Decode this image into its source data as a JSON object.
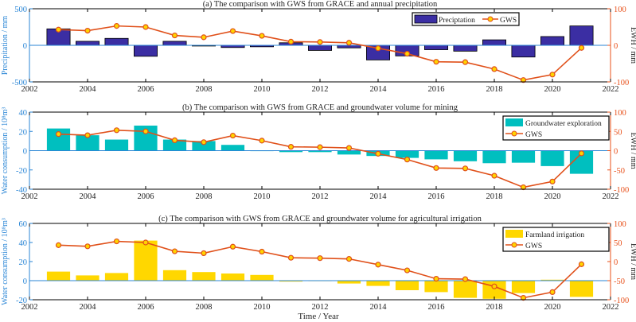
{
  "xlabel": "Time / Year",
  "colors": {
    "left_axis": "#2a86d6",
    "right_axis": "#e8501a",
    "gws_line": "#e0501a",
    "gws_marker_fill": "#ffd400"
  },
  "chart_data": [
    {
      "type": "bar",
      "title": "(a) The comparison with GWS from GRACE and annual precipitation",
      "ylabel": "Precipitation / mm",
      "y2label": "EWH / mm",
      "xlim": [
        2002,
        2022
      ],
      "xticks": [
        "2002",
        "2004",
        "2006",
        "2008",
        "2010",
        "2012",
        "2014",
        "2016",
        "2018",
        "2020",
        "2022"
      ],
      "ylim": [
        -500,
        500
      ],
      "yticks": [
        "-500",
        "0",
        "500"
      ],
      "y2lim": [
        -100,
        100
      ],
      "y2ticks": [
        "-100",
        "0",
        "100"
      ],
      "legend_position": "top-right-inline",
      "bar_color": "#3b2ea3",
      "bar_edge": "#000000",
      "series": [
        {
          "name": "Preciptation",
          "axis": "left",
          "kind": "bar",
          "x": [
            2003,
            2004,
            2005,
            2006,
            2007,
            2008,
            2009,
            2010,
            2011,
            2012,
            2013,
            2014,
            2015,
            2016,
            2017,
            2018,
            2019,
            2020,
            2021
          ],
          "values": [
            225,
            55,
            95,
            -150,
            55,
            -10,
            -30,
            -20,
            35,
            -70,
            -35,
            -200,
            -145,
            -60,
            -80,
            75,
            -160,
            120,
            265
          ]
        },
        {
          "name": "GWS",
          "axis": "right",
          "kind": "line",
          "x": [
            2003,
            2004,
            2005,
            2006,
            2007,
            2008,
            2009,
            2010,
            2011,
            2012,
            2013,
            2014,
            2015,
            2016,
            2017,
            2018,
            2019,
            2020,
            2021
          ],
          "values": [
            43,
            40,
            53,
            50,
            27,
            22,
            39,
            26,
            10,
            9,
            7,
            -8,
            -23,
            -45,
            -46,
            -65,
            -95,
            -80,
            -7
          ]
        }
      ]
    },
    {
      "type": "bar",
      "title": "(b) The comparison with GWS from GRACE and groundwater volume for mining",
      "ylabel": "Water consumption / 10⁸m³",
      "y2label": "EWH / mm",
      "xlim": [
        2002,
        2022
      ],
      "xticks": [
        "2002",
        "2004",
        "2006",
        "2008",
        "2010",
        "2012",
        "2014",
        "2016",
        "2018",
        "2020",
        "2022"
      ],
      "ylim": [
        -40,
        40
      ],
      "yticks": [
        "-40",
        "-20",
        "0",
        "20",
        "40"
      ],
      "y2lim": [
        -100,
        100
      ],
      "y2ticks": [
        "-100",
        "-50",
        "0",
        "50",
        "100"
      ],
      "legend_position": "top-right-stacked",
      "bar_color": "#00bfbf",
      "bar_edge": "none",
      "series": [
        {
          "name": "Groundwater exploration",
          "axis": "left",
          "kind": "bar",
          "x": [
            2003,
            2004,
            2005,
            2006,
            2007,
            2008,
            2009,
            2010,
            2011,
            2012,
            2013,
            2014,
            2015,
            2016,
            2017,
            2018,
            2019,
            2020,
            2021
          ],
          "values": [
            23,
            16,
            11.5,
            26,
            11.5,
            10,
            6,
            0,
            -1.5,
            -1.5,
            -4,
            -5.5,
            -7.5,
            -9,
            -11,
            -13,
            -12.5,
            -16,
            -24
          ]
        },
        {
          "name": "GWS",
          "axis": "right",
          "kind": "line",
          "x": [
            2003,
            2004,
            2005,
            2006,
            2007,
            2008,
            2009,
            2010,
            2011,
            2012,
            2013,
            2014,
            2015,
            2016,
            2017,
            2018,
            2019,
            2020,
            2021
          ],
          "values": [
            43,
            40,
            53,
            50,
            27,
            22,
            39,
            26,
            10,
            9,
            7,
            -8,
            -23,
            -45,
            -46,
            -65,
            -95,
            -80,
            -7
          ]
        }
      ]
    },
    {
      "type": "bar",
      "title": "(c) The comparison with GWS from GRACE and groundwater volume for agricultural irrigation",
      "ylabel": "Water consumption / 10⁸m³",
      "y2label": "EWH / mm",
      "xlim": [
        2002,
        2022
      ],
      "xticks": [
        "2002",
        "2004",
        "2006",
        "2008",
        "2010",
        "2012",
        "2014",
        "2016",
        "2018",
        "2020",
        "2022"
      ],
      "ylim": [
        -20,
        60
      ],
      "yticks": [
        "-20",
        "0",
        "20",
        "40",
        "60"
      ],
      "y2lim": [
        -100,
        100
      ],
      "y2ticks": [
        "-100",
        "-50",
        "0",
        "50",
        "100"
      ],
      "legend_position": "top-right-stacked",
      "bar_color": "#ffd700",
      "bar_edge": "none",
      "series": [
        {
          "name": "Farmland irrigation",
          "axis": "left",
          "kind": "bar",
          "x": [
            2003,
            2004,
            2005,
            2006,
            2007,
            2008,
            2009,
            2010,
            2011,
            2012,
            2013,
            2014,
            2015,
            2016,
            2017,
            2018,
            2019,
            2020,
            2021
          ],
          "values": [
            9.5,
            5.5,
            8,
            42,
            11,
            9,
            7.5,
            6,
            -1,
            0,
            -3,
            -5.5,
            -10,
            -12,
            -18,
            -19,
            -13,
            1,
            -17
          ]
        },
        {
          "name": "GWS",
          "axis": "right",
          "kind": "line",
          "x": [
            2003,
            2004,
            2005,
            2006,
            2007,
            2008,
            2009,
            2010,
            2011,
            2012,
            2013,
            2014,
            2015,
            2016,
            2017,
            2018,
            2019,
            2020,
            2021
          ],
          "values": [
            43,
            40,
            53,
            50,
            27,
            22,
            39,
            26,
            10,
            9,
            7,
            -8,
            -23,
            -45,
            -46,
            -65,
            -95,
            -80,
            -7
          ]
        }
      ]
    }
  ]
}
